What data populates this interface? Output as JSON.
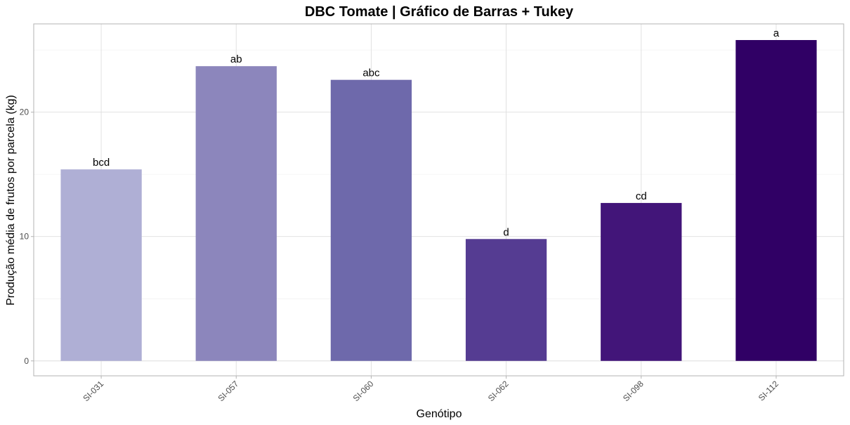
{
  "chart_data": {
    "type": "bar",
    "title": "DBC Tomate | Gráfico de Barras + Tukey",
    "xlabel": "Genótipo",
    "ylabel": "Produção média de frutos por parcela (kg)",
    "categories": [
      "SI-031",
      "SI-057",
      "SI-060",
      "SI-062",
      "SI-098",
      "SI-112"
    ],
    "values": [
      15.4,
      23.7,
      22.6,
      9.8,
      12.7,
      25.8
    ],
    "tukey_letters": [
      "bcd",
      "ab",
      "abc",
      "d",
      "cd",
      "a"
    ],
    "colors": [
      "#afafd5",
      "#8c86bc",
      "#6e69ab",
      "#553c92",
      "#421579",
      "#300065"
    ],
    "ylim": [
      -1.2,
      27.1
    ],
    "yticks": [
      0,
      10,
      20
    ],
    "grid": true,
    "legend": "none"
  }
}
